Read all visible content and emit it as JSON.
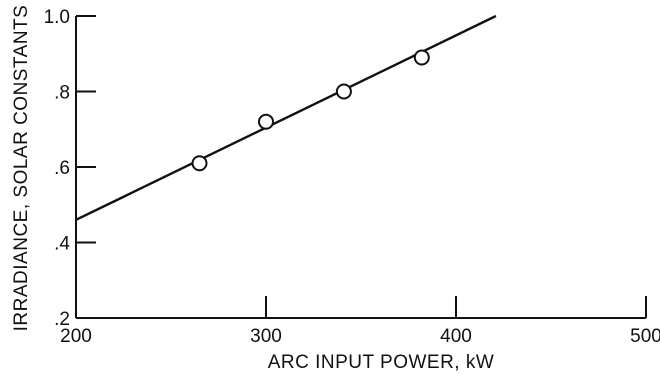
{
  "chart_data": {
    "type": "scatter",
    "title": "",
    "xlabel": "ARC INPUT POWER, kW",
    "ylabel": "IRRADIANCE, SOLAR CONSTANTS",
    "xlim": [
      200,
      500
    ],
    "ylim": [
      0.2,
      1.0
    ],
    "x_ticks": [
      {
        "value": 200,
        "label": "200"
      },
      {
        "value": 300,
        "label": "300"
      },
      {
        "value": 400,
        "label": "400"
      },
      {
        "value": 500,
        "label": "500"
      }
    ],
    "y_ticks": [
      {
        "value": 0.2,
        "label": ".2"
      },
      {
        "value": 0.4,
        "label": ".4"
      },
      {
        "value": 0.6,
        "label": ".6"
      },
      {
        "value": 0.8,
        "label": ".8"
      },
      {
        "value": 1.0,
        "label": "1.0"
      }
    ],
    "series": [
      {
        "marker": "open-circle",
        "points": [
          {
            "x": 265,
            "y": 0.61
          },
          {
            "x": 300,
            "y": 0.72
          },
          {
            "x": 341,
            "y": 0.8
          },
          {
            "x": 382,
            "y": 0.89
          }
        ]
      }
    ],
    "fit_line": {
      "x": [
        200,
        421
      ],
      "y": [
        0.46,
        1.0
      ]
    },
    "grid": false,
    "legend": "none"
  }
}
